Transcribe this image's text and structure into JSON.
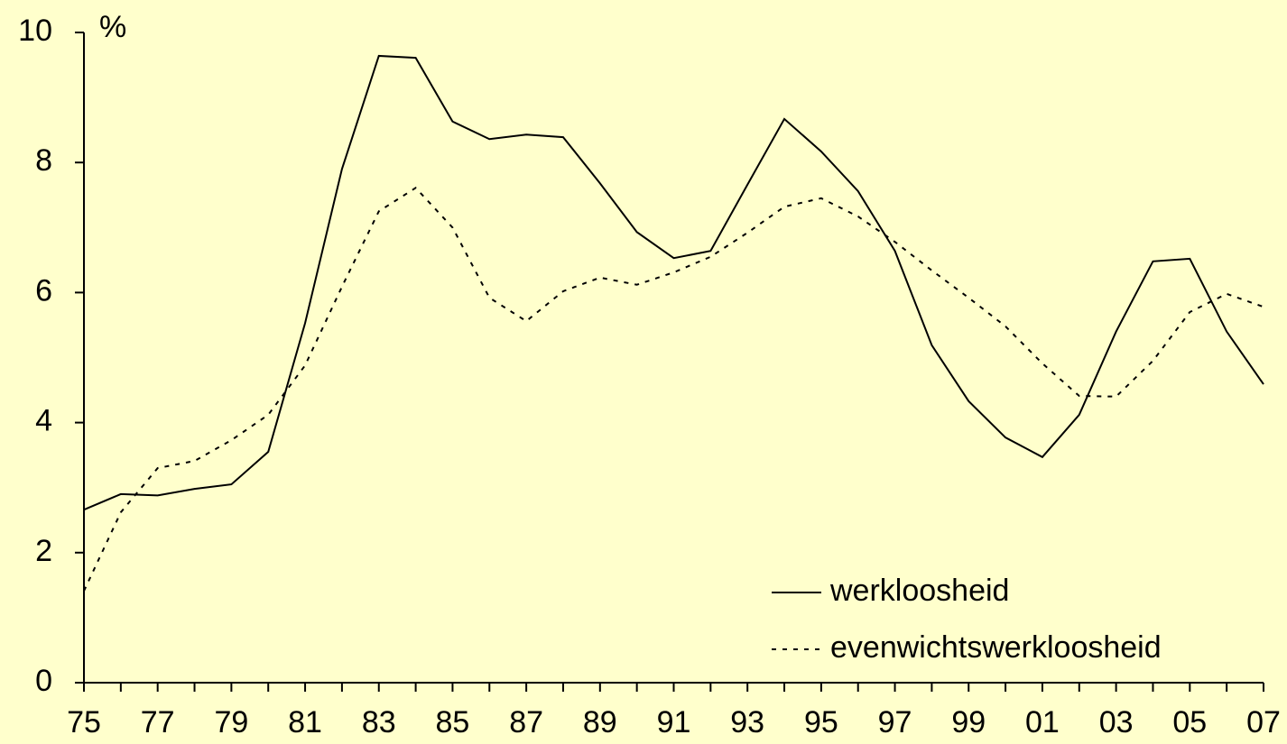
{
  "chart_data": {
    "type": "line",
    "y_label": "%",
    "categories": [
      "75",
      null,
      "77",
      null,
      "79",
      null,
      "81",
      null,
      "83",
      null,
      "85",
      null,
      "87",
      null,
      "89",
      null,
      "91",
      null,
      "93",
      null,
      "95",
      null,
      "97",
      null,
      "99",
      null,
      "01",
      null,
      "03",
      null,
      "05",
      null,
      "07"
    ],
    "series": [
      {
        "name": "werkloosheid",
        "color": "#000000",
        "style": "solid",
        "values": [
          2.66,
          2.9,
          2.88,
          2.98,
          3.05,
          3.55,
          5.53,
          7.9,
          9.64,
          9.61,
          8.63,
          8.36,
          8.43,
          8.39,
          7.68,
          6.93,
          6.53,
          6.64,
          7.66,
          8.67,
          8.17,
          7.56,
          6.64,
          5.19,
          4.33,
          3.77,
          3.47,
          4.12,
          5.4,
          6.48,
          6.52,
          5.4,
          4.59
        ]
      },
      {
        "name": "evenwichtswerkloosheid",
        "color": "#000000",
        "style": "dotted",
        "values": [
          1.41,
          2.62,
          3.3,
          3.41,
          3.73,
          4.12,
          4.88,
          6.09,
          7.25,
          7.61,
          7.0,
          5.92,
          5.56,
          6.02,
          6.23,
          6.12,
          6.31,
          6.55,
          6.92,
          7.32,
          7.45,
          7.17,
          6.78,
          6.34,
          5.92,
          5.48,
          4.91,
          4.41,
          4.4,
          4.95,
          5.7,
          5.98,
          5.78
        ]
      }
    ],
    "ylim": [
      0,
      10
    ],
    "yticks": [
      0,
      2,
      4,
      6,
      8,
      10
    ],
    "legend": "lower right"
  }
}
